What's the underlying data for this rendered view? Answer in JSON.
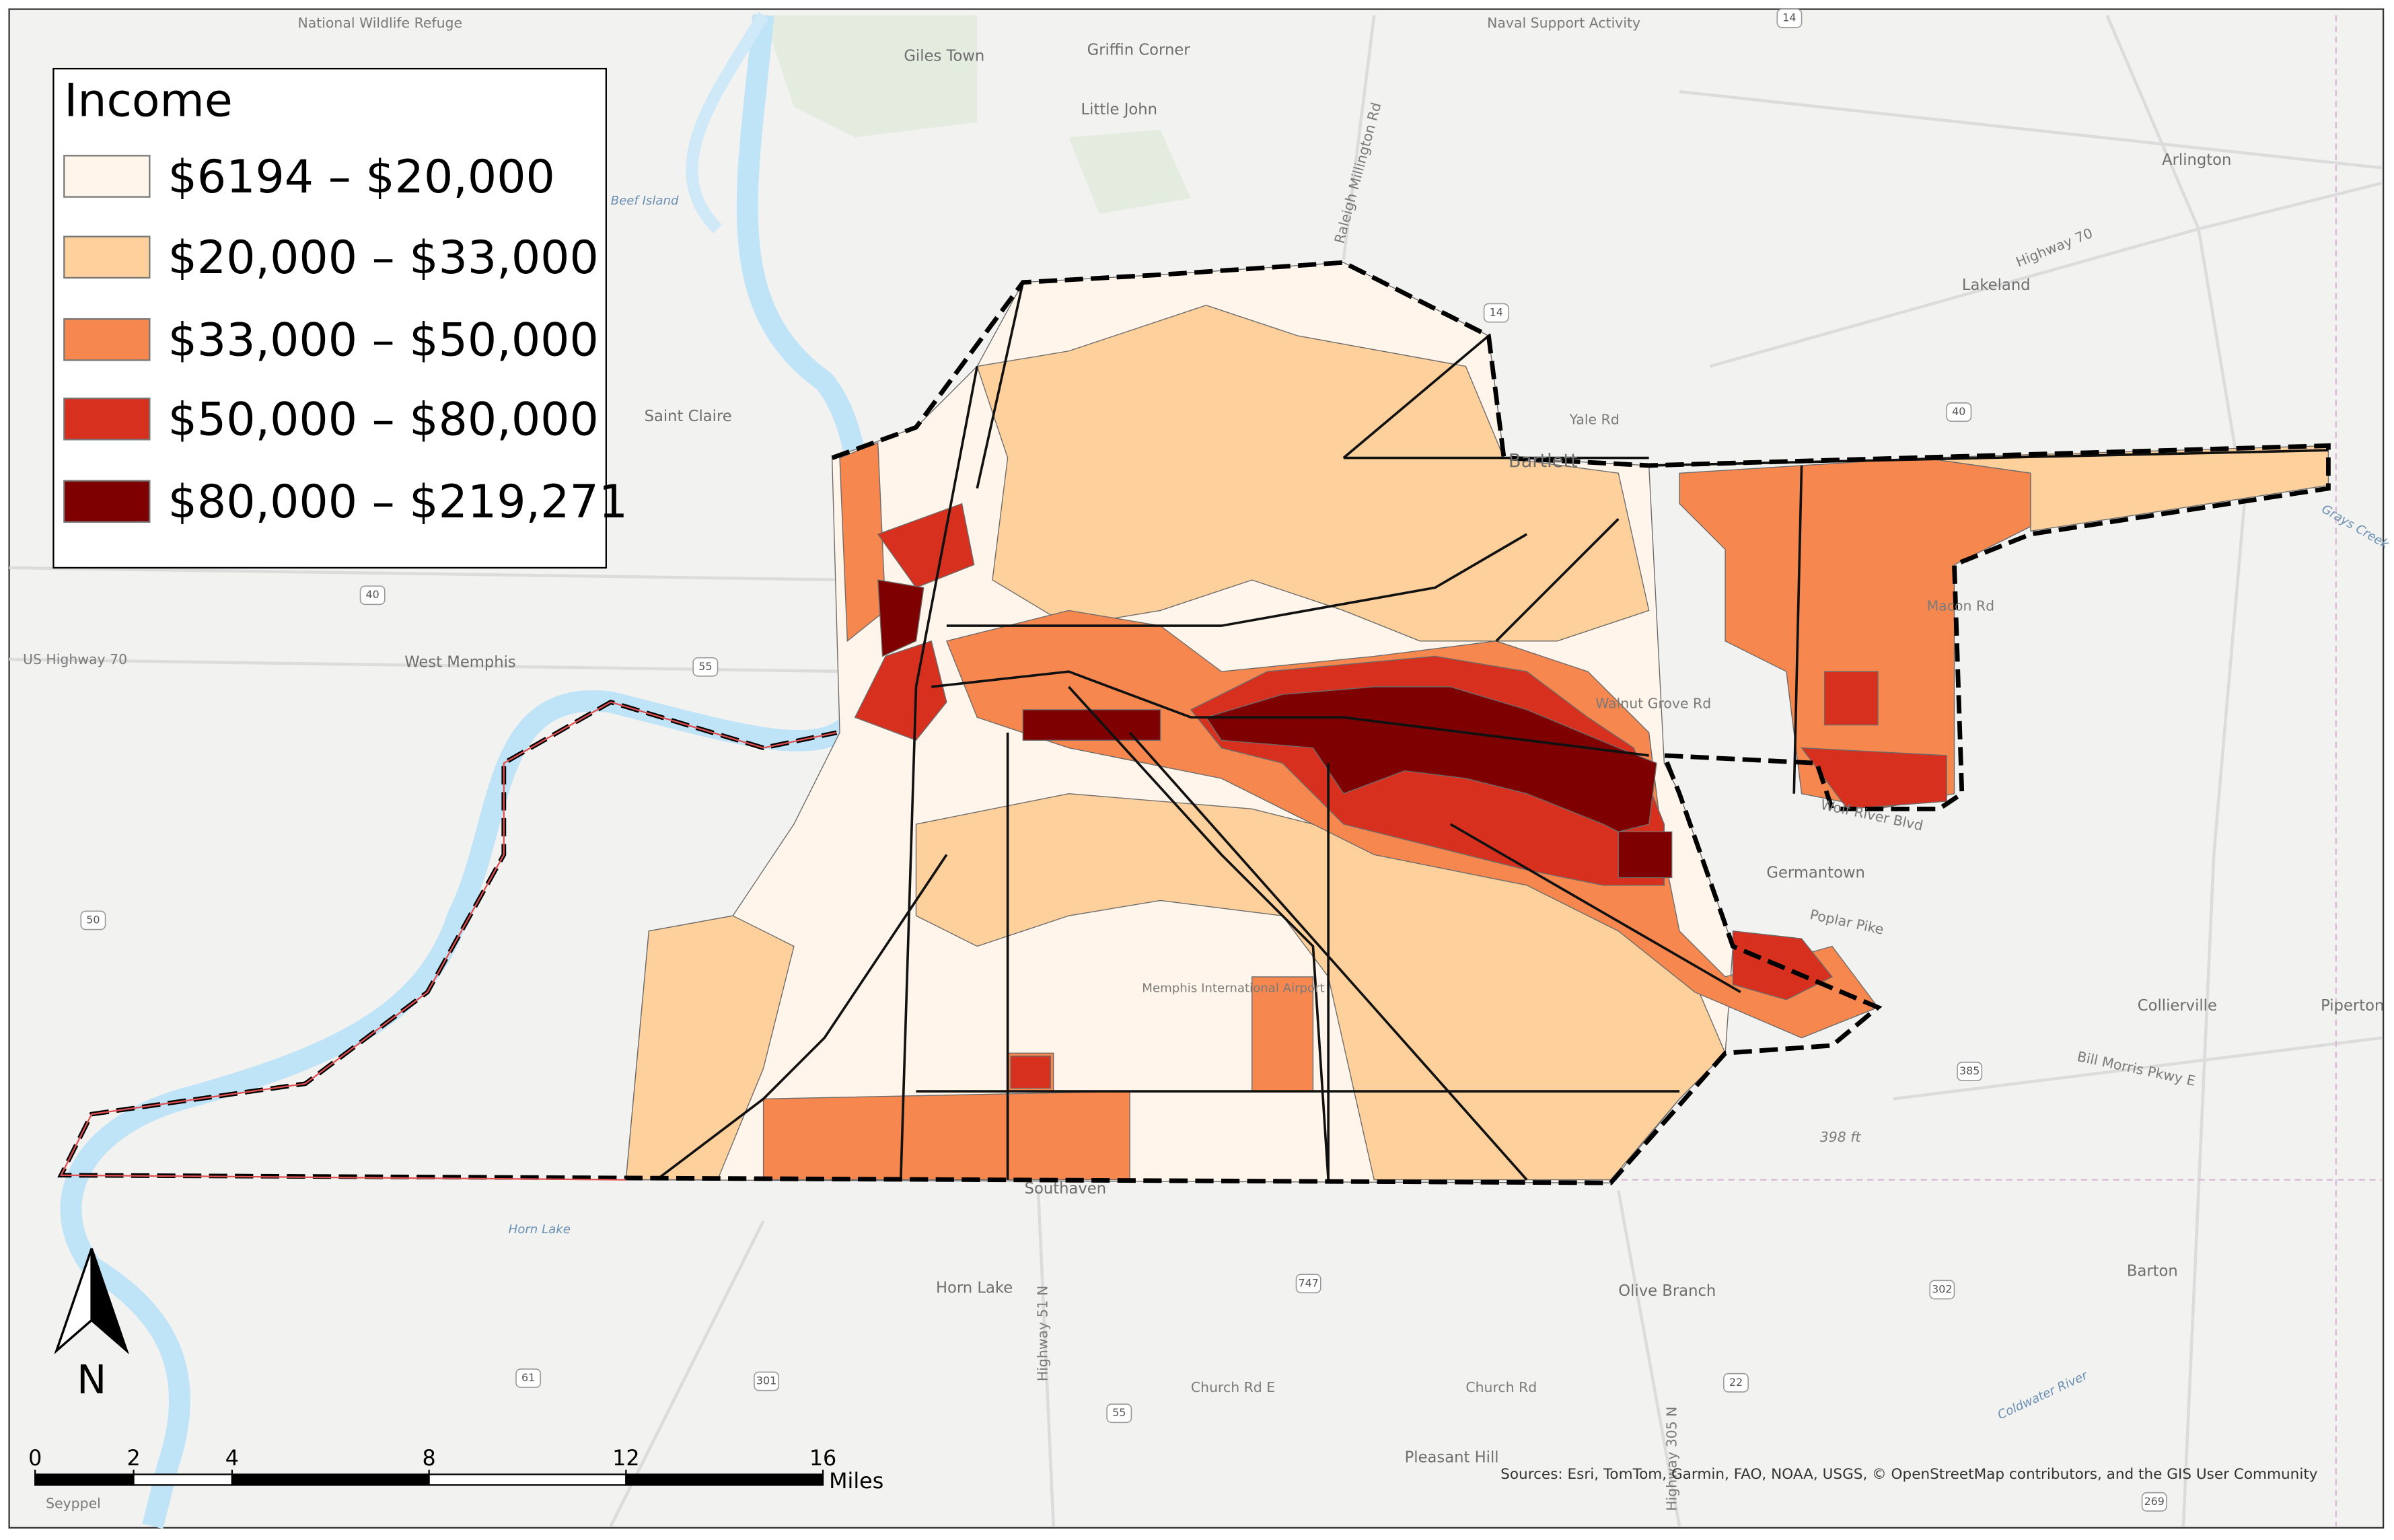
{
  "legend": {
    "title": "Income",
    "items": [
      {
        "label": "$6194 – $20,000",
        "color": "#fff5eb"
      },
      {
        "label": "$20,000 – $33,000",
        "color": "#fdd09c"
      },
      {
        "label": "$33,000 – $50,000",
        "color": "#f5874f"
      },
      {
        "label": "$50,000 – $80,000",
        "color": "#d7301f"
      },
      {
        "label": "$80,000 – $219,271",
        "color": "#7f0000"
      }
    ]
  },
  "place_labels": [
    "National Wildlife Refuge",
    "Giles Town",
    "Griffin Corner",
    "Naval Support Activity",
    "Little John",
    "Beef Island",
    "Arlington",
    "Lakeland",
    "Highway 70",
    "Saint Claire",
    "Yale Rd",
    "Bartlett",
    "Macon Rd",
    "West Memphis",
    "US Highway 70",
    "Walnut Grove Rd",
    "Germantown",
    "Poplar Pike",
    "Wolf River Blvd",
    "Memphis International Airport",
    "Collierville",
    "Piperton",
    "Bill Morris Pkwy E",
    "398 ft",
    "Southaven",
    "Horn Lake",
    "Olive Branch",
    "Barton",
    "Church Rd E",
    "Church Rd",
    "Pleasant Hill",
    "Seyppel",
    "Horn Lake",
    "Coldwater River",
    "Highway 51 N",
    "Highway 305 N",
    "Raleigh Millington Rd",
    "Grays Creek"
  ],
  "route_shields": [
    "14",
    "14",
    "40",
    "40",
    "55",
    "50",
    "385",
    "747",
    "302",
    "301",
    "61",
    "55",
    "22",
    "269"
  ],
  "scale_bar": {
    "ticks": [
      0,
      2,
      4,
      8,
      12,
      16
    ],
    "unit": "Miles"
  },
  "north_arrow": "N",
  "attribution": "Sources: Esri, TomTom, Garmin, FAO, NOAA, USGS, © OpenStreetMap contributors, and the GIS User Community"
}
